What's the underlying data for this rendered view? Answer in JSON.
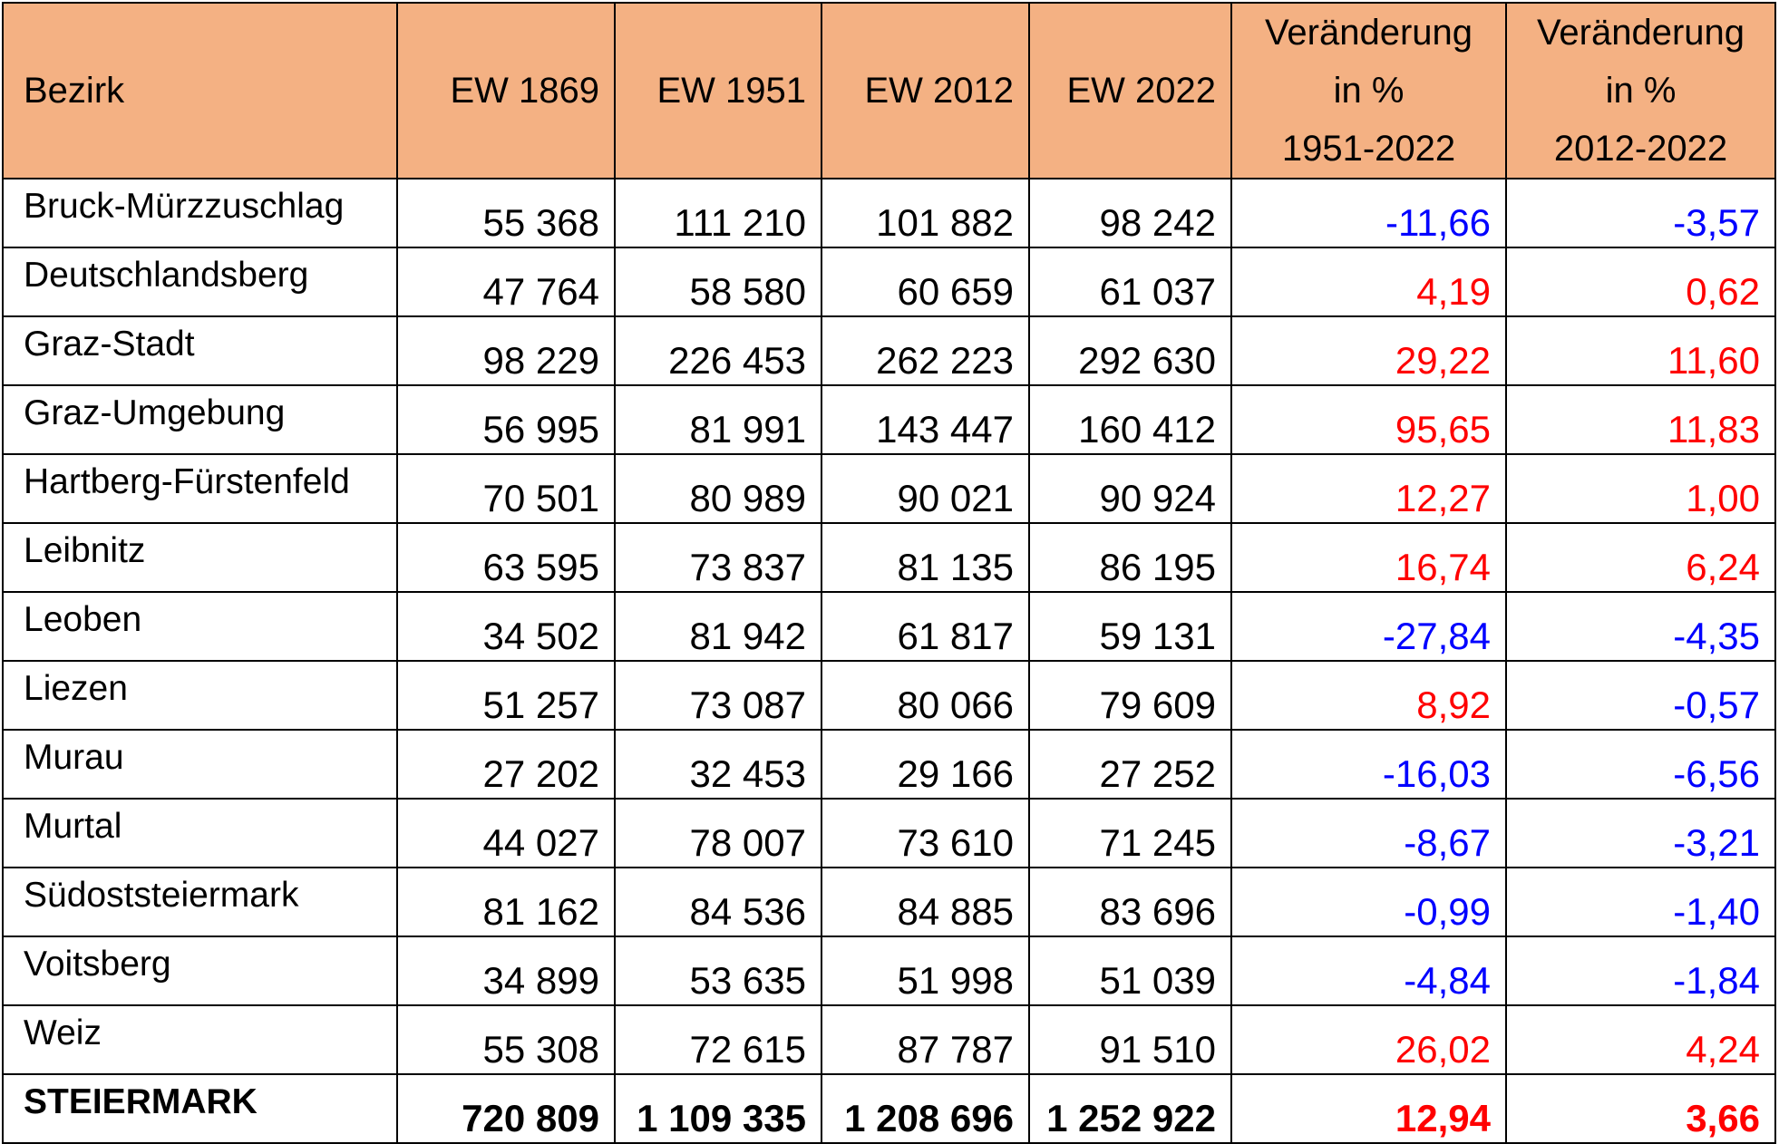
{
  "table": {
    "header": [
      [
        "Bezirk"
      ],
      [
        "EW 1869"
      ],
      [
        "EW 1951"
      ],
      [
        "EW 2012"
      ],
      [
        "EW 2022"
      ],
      [
        "Veränderung",
        "in %",
        "1951-2022"
      ],
      [
        "Veränderung",
        "in %",
        "2012-2022"
      ]
    ],
    "rows": [
      [
        "Bruck-Mürzzuschlag",
        "55 368",
        "111 210",
        "101 882",
        "98 242",
        "-11,66",
        "-3,57"
      ],
      [
        "Deutschlandsberg",
        "47 764",
        "58 580",
        "60 659",
        "61 037",
        "4,19",
        "0,62"
      ],
      [
        "Graz-Stadt",
        "98 229",
        "226 453",
        "262 223",
        "292 630",
        "29,22",
        "11,60"
      ],
      [
        "Graz-Umgebung",
        "56 995",
        "81 991",
        "143 447",
        "160 412",
        "95,65",
        "11,83"
      ],
      [
        "Hartberg-Fürstenfeld",
        "70 501",
        "80 989",
        "90 021",
        "90 924",
        "12,27",
        "1,00"
      ],
      [
        "Leibnitz",
        "63 595",
        "73 837",
        "81 135",
        "86 195",
        "16,74",
        "6,24"
      ],
      [
        "Leoben",
        "34 502",
        "81 942",
        "61 817",
        "59 131",
        "-27,84",
        "-4,35"
      ],
      [
        "Liezen",
        "51 257",
        "73 087",
        "80 066",
        "79 609",
        "8,92",
        "-0,57"
      ],
      [
        "Murau",
        "27 202",
        "32 453",
        "29 166",
        "27 252",
        "-16,03",
        "-6,56"
      ],
      [
        "Murtal",
        "44 027",
        "78 007",
        "73 610",
        "71 245",
        "-8,67",
        "-3,21"
      ],
      [
        "Südoststeiermark",
        "81 162",
        "84 536",
        "84 885",
        "83 696",
        "-0,99",
        "-1,40"
      ],
      [
        "Voitsberg",
        "34 899",
        "53 635",
        "51 998",
        "51 039",
        "-4,84",
        "-1,84"
      ],
      [
        "Weiz",
        "55 308",
        "72 615",
        "87 787",
        "91 510",
        "26,02",
        "4,24"
      ]
    ],
    "total": [
      "STEIERMARK",
      "720 809",
      "1 109 335",
      "1 208 696",
      "1 252 922",
      "12,94",
      "3,66"
    ]
  }
}
